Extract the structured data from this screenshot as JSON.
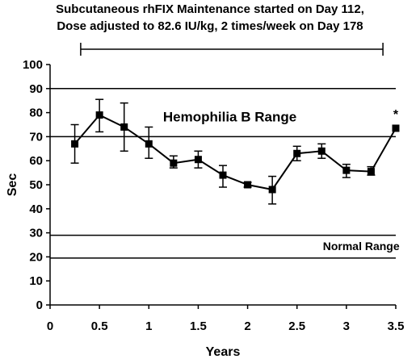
{
  "annotations": {
    "line1": "Subcutaneous rhFIX Maintenance started on Day 112,",
    "line2": "Dose adjusted to 82.6 IU/kg, 2 times/week on Day 178",
    "span_start": 0.31,
    "span_end": 3.37,
    "hemophilia_label": "Hemophilia B Range",
    "normal_label": "Normal Range",
    "star": "*"
  },
  "chart_data": {
    "type": "line",
    "title": "",
    "xlabel": "Years",
    "ylabel": "Sec",
    "xlim": [
      0,
      3.5
    ],
    "ylim": [
      0,
      100
    ],
    "xticks": [
      0,
      0.5,
      1,
      1.5,
      2,
      2.5,
      3,
      3.5
    ],
    "xtick_labels": [
      "0",
      "0.5",
      "1",
      "1.5",
      "2",
      "2.5",
      "3",
      "3.5"
    ],
    "yticks": [
      0,
      10,
      20,
      30,
      40,
      50,
      60,
      70,
      80,
      90,
      100
    ],
    "ytick_labels": [
      "0",
      "10",
      "20",
      "30",
      "40",
      "50",
      "60",
      "70",
      "80",
      "90",
      "100"
    ],
    "reference_lines": [
      90,
      70,
      29,
      19.5
    ],
    "grid": false,
    "series": [
      {
        "x": [
          0.25,
          0.5,
          0.75,
          1.0,
          1.25,
          1.5,
          1.75,
          2.0,
          2.25,
          2.5,
          2.75,
          3.0,
          3.25,
          3.5
        ],
        "y": [
          67,
          79,
          74,
          67,
          59,
          60.5,
          54,
          50,
          48,
          63,
          64,
          56,
          55.5,
          73.5
        ],
        "err_low": [
          59,
          72,
          64,
          61,
          57,
          57,
          49,
          49,
          42,
          60,
          61,
          53,
          54,
          73.5
        ],
        "err_high": [
          75,
          85.5,
          84,
          74,
          62,
          64,
          58,
          51,
          53.5,
          66,
          67,
          58.5,
          57.5,
          73.5
        ]
      }
    ]
  }
}
